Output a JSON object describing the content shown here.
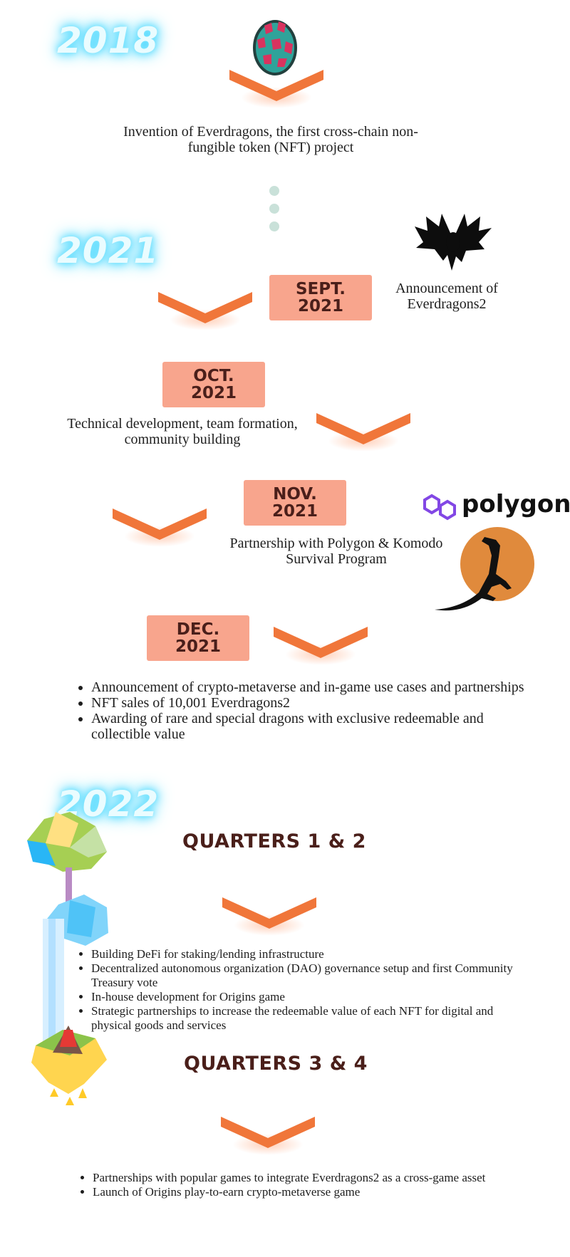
{
  "years": {
    "y2018": "2018",
    "y2021": "2021",
    "y2022": "2022"
  },
  "milestone_2018": {
    "caption": "Invention of Everdragons, the first cross-chain non-fungible token (NFT) project"
  },
  "sept": {
    "date": "SEPT.\n2021",
    "caption": "Announcement of Everdragons2"
  },
  "oct": {
    "date": "OCT.\n2021",
    "caption": "Technical development, team formation, community building"
  },
  "nov": {
    "date": "NOV.\n2021",
    "caption": "Partnership with Polygon &  Komodo Survival Program",
    "logo_text": "polygon"
  },
  "dec": {
    "date": "DEC.\n2021",
    "items": [
      "Announcement of crypto-metaverse and in-game use cases and partnerships",
      "NFT sales of 10,001 Everdragons2",
      "Awarding of rare and special dragons with exclusive redeemable and collectible value"
    ]
  },
  "q12": {
    "heading": "QUARTERS 1 & 2",
    "items": [
      "Building DeFi for staking/lending infrastructure",
      "Decentralized autonomous organization (DAO) governance setup and first Community Treasury vote",
      "In-house development for Origins game",
      "Strategic partnerships to increase the redeemable value of each NFT for digital and physical goods and services"
    ]
  },
  "q34": {
    "heading": "QUARTERS 3 & 4",
    "items": [
      "Partnerships with popular games to integrate Everdragons2 as a cross-game asset",
      "Launch of Origins play-to-earn crypto-metaverse game"
    ]
  },
  "colors": {
    "chevron": "#f0763a",
    "date_box": "#f8a58d",
    "date_text": "#4a1f1a",
    "year_glow": "#38d4ff",
    "polygon_purple": "#8247e5",
    "komodo_orange": "#e08a3c"
  },
  "icons": [
    "dragon-egg-icon",
    "dragon-silhouette-icon",
    "polygon-logo-icon",
    "komodo-logo-icon",
    "floating-island-illustration"
  ]
}
